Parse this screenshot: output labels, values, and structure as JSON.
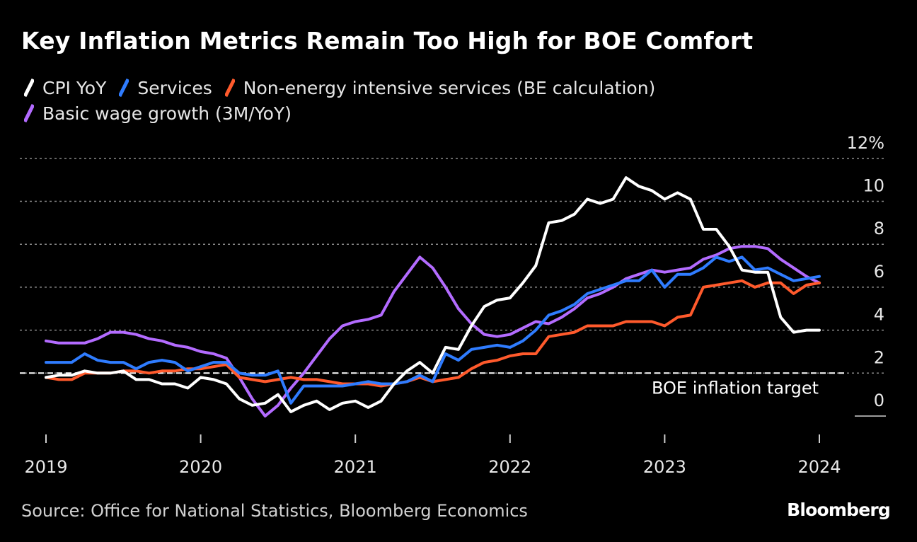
{
  "title": "Key Inflation Metrics Remain Too High for BOE Comfort",
  "source": "Source: Office for National Statistics, Bloomberg Economics",
  "brand": "Bloomberg",
  "chart_data": {
    "type": "line",
    "title": "Key Inflation Metrics Remain Too High for BOE Comfort",
    "xlabel": "",
    "ylabel": "",
    "unit": "%",
    "ylim": [
      -1,
      12
    ],
    "yticks": [
      0,
      2,
      4,
      6,
      8,
      10,
      12
    ],
    "ytick_labels": [
      "0",
      "2",
      "4",
      "6",
      "8",
      "10",
      "12%"
    ],
    "xlim": [
      2019.0,
      2024.2
    ],
    "xticks": [
      2019,
      2020,
      2021,
      2022,
      2023,
      2024
    ],
    "xtick_labels": [
      "2019",
      "2020",
      "2021",
      "2022",
      "2023",
      "2024"
    ],
    "grid": true,
    "legend_position": "top-left",
    "reference_line": {
      "value": 2,
      "label": "BOE inflation target",
      "color": "#ffffff"
    },
    "series": [
      {
        "name": "CPI YoY",
        "color": "#ffffff",
        "start": 2019.0,
        "values": [
          1.8,
          1.9,
          1.9,
          2.1,
          2.0,
          2.0,
          2.1,
          1.7,
          1.7,
          1.5,
          1.5,
          1.3,
          1.8,
          1.7,
          1.5,
          0.8,
          0.5,
          0.6,
          1.0,
          0.2,
          0.5,
          0.7,
          0.3,
          0.6,
          0.7,
          0.4,
          0.7,
          1.5,
          2.1,
          2.5,
          2.0,
          3.2,
          3.1,
          4.2,
          5.1,
          5.4,
          5.5,
          6.2,
          7.0,
          9.0,
          9.1,
          9.4,
          10.1,
          9.9,
          10.1,
          11.1,
          10.7,
          10.5,
          10.1,
          10.4,
          10.1,
          8.7,
          8.7,
          7.9,
          6.8,
          6.7,
          6.7,
          4.6,
          3.9,
          4.0,
          4.0
        ]
      },
      {
        "name": "Services",
        "color": "#2f7cff",
        "start": 2019.0,
        "values": [
          2.5,
          2.5,
          2.5,
          2.9,
          2.6,
          2.5,
          2.5,
          2.2,
          2.5,
          2.6,
          2.5,
          2.1,
          2.3,
          2.5,
          2.5,
          2.0,
          1.9,
          1.9,
          2.1,
          0.6,
          1.4,
          1.4,
          1.4,
          1.4,
          1.5,
          1.6,
          1.5,
          1.5,
          1.6,
          1.9,
          1.6,
          2.9,
          2.6,
          3.1,
          3.2,
          3.3,
          3.2,
          3.5,
          4.0,
          4.7,
          4.9,
          5.2,
          5.7,
          5.9,
          6.1,
          6.3,
          6.3,
          6.8,
          6.0,
          6.6,
          6.6,
          6.9,
          7.4,
          7.2,
          7.4,
          6.8,
          6.9,
          6.6,
          6.3,
          6.4,
          6.5
        ]
      },
      {
        "name": "Non-energy intensive services (BE calculation)",
        "color": "#ff5a2c",
        "start": 2019.0,
        "values": [
          1.8,
          1.7,
          1.7,
          2.0,
          2.0,
          2.0,
          2.1,
          2.1,
          2.0,
          2.1,
          2.1,
          2.2,
          2.2,
          2.3,
          2.4,
          1.8,
          1.7,
          1.6,
          1.7,
          1.8,
          1.7,
          1.7,
          1.6,
          1.5,
          1.5,
          1.5,
          1.4,
          1.5,
          1.6,
          1.8,
          1.6,
          1.7,
          1.8,
          2.2,
          2.5,
          2.6,
          2.8,
          2.9,
          2.9,
          3.7,
          3.8,
          3.9,
          4.2,
          4.2,
          4.2,
          4.4,
          4.4,
          4.4,
          4.2,
          4.6,
          4.7,
          6.0,
          6.1,
          6.2,
          6.3,
          6.0,
          6.2,
          6.2,
          5.7,
          6.1,
          6.2
        ]
      },
      {
        "name": "Basic wage growth (3M/YoY)",
        "color": "#b36bff",
        "start": 2019.0,
        "values": [
          3.5,
          3.4,
          3.4,
          3.4,
          3.6,
          3.9,
          3.9,
          3.8,
          3.6,
          3.5,
          3.3,
          3.2,
          3.0,
          2.9,
          2.7,
          1.8,
          0.8,
          0.0,
          0.5,
          1.3,
          2.0,
          2.8,
          3.6,
          4.2,
          4.4,
          4.5,
          4.7,
          5.8,
          6.6,
          7.4,
          6.9,
          6.0,
          5.0,
          4.3,
          3.8,
          3.7,
          3.8,
          4.1,
          4.4,
          4.3,
          4.6,
          5.0,
          5.5,
          5.7,
          6.0,
          6.4,
          6.6,
          6.8,
          6.7,
          6.8,
          6.9,
          7.3,
          7.5,
          7.8,
          7.9,
          7.9,
          7.8,
          7.3,
          6.9,
          6.5,
          6.2
        ],
        "end_index": 59
      }
    ]
  }
}
